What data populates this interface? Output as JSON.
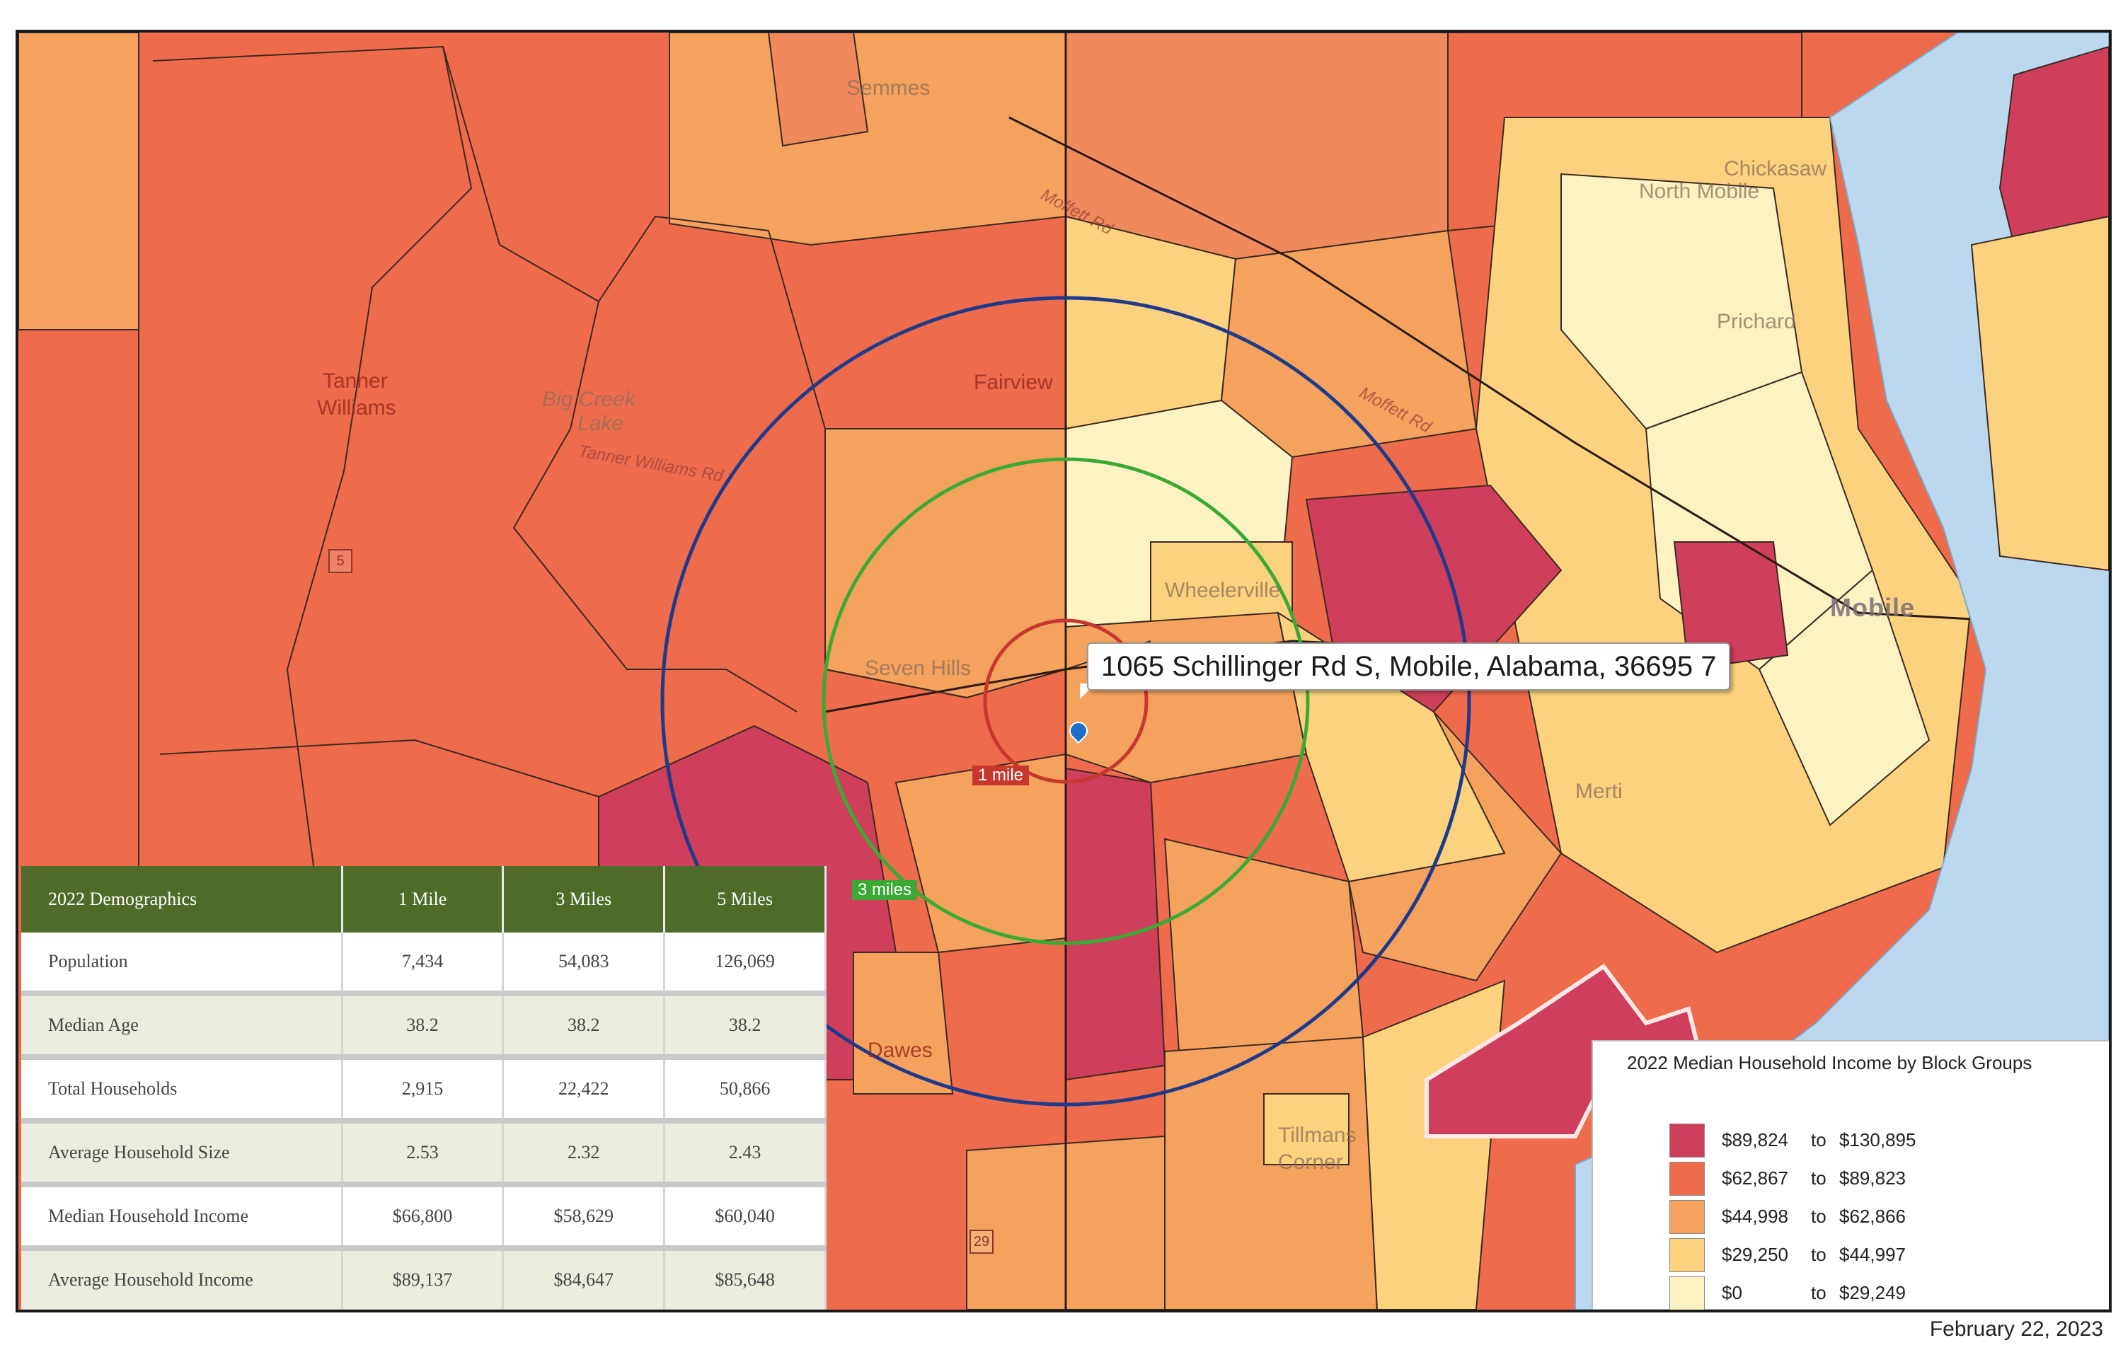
{
  "map": {
    "address": "1065 Schillinger Rd S, Mobile, Alabama, 36695 7",
    "radius_labels": {
      "one": "1 mile",
      "three": "3 miles"
    },
    "places": {
      "semmes": "Semmes",
      "chickasaw": "Chickasaw",
      "north_mobile": "North Mobile",
      "prichard": "Prichard",
      "tanner": "Tanner",
      "williams": "Williams",
      "fairview": "Fairview",
      "big_creek": "Big Creek",
      "lake": "Lake",
      "seven_hills": "Seven Hills",
      "mobile": "Mobile",
      "wheelerville": "Wheelerville",
      "merti": "Merti",
      "dawes": "Dawes",
      "tillmans": "Tillmans",
      "corner": "Corner"
    },
    "roads": {
      "tanner_williams_rd": "Tanner Williams Rd",
      "moffett_rd_1": "Moffett Rd",
      "moffett_rd_2": "Moffett Rd"
    },
    "shields": {
      "route5": "5",
      "route29": "29"
    }
  },
  "demographics": {
    "header": [
      "2022 Demographics",
      "1 Mile",
      "3 Miles",
      "5 Miles"
    ],
    "rows": [
      {
        "label": "Population",
        "values": [
          "7,434",
          "54,083",
          "126,069"
        ]
      },
      {
        "label": "Median Age",
        "values": [
          "38.2",
          "38.2",
          "38.2"
        ]
      },
      {
        "label": "Total Households",
        "values": [
          "2,915",
          "22,422",
          "50,866"
        ]
      },
      {
        "label": "Average Household Size",
        "values": [
          "2.53",
          "2.32",
          "2.43"
        ]
      },
      {
        "label": "Median Household Income",
        "values": [
          "$66,800",
          "$58,629",
          "$60,040"
        ]
      },
      {
        "label": "Average Household Income",
        "values": [
          "$89,137",
          "$84,647",
          "$85,648"
        ]
      }
    ]
  },
  "legend": {
    "title": "2022 Median Household Income by Block Groups",
    "classes": [
      {
        "min": "$89,824",
        "to": "to",
        "max": "$130,895",
        "color": "#cf3e5a"
      },
      {
        "min": "$62,867",
        "to": "to",
        "max": "$89,823",
        "color": "#ee6b4b"
      },
      {
        "min": "$44,998",
        "to": "to",
        "max": "$62,866",
        "color": "#f5a25e"
      },
      {
        "min": "$29,250",
        "to": "to",
        "max": "$44,997",
        "color": "#fcd27e"
      },
      {
        "min": "$0",
        "to": "to",
        "max": "$29,249",
        "color": "#fdf2c2"
      }
    ]
  },
  "colors": {
    "water": "#bcd8ee",
    "ring_5mi": "#1e3a8a",
    "ring_3mi": "#3aaa35",
    "ring_1mi": "#c8372d",
    "table_header": "#4f6b2a"
  },
  "date": "February 22, 2023"
}
